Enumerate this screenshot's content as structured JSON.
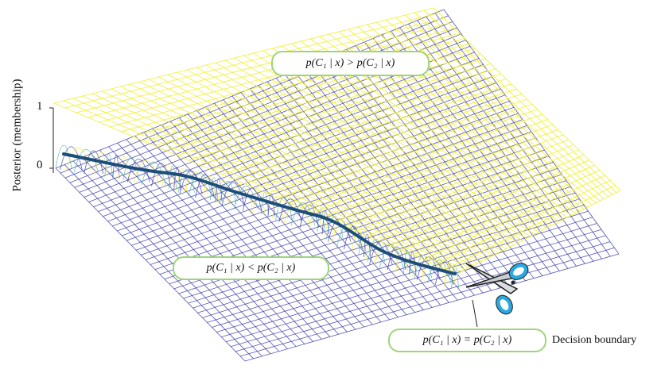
{
  "figure": {
    "y_axis_label": "Posterior (membership)",
    "y_ticks": [
      "1",
      "0"
    ],
    "labels": {
      "region_c1": "p(C₁ | x) > p(C₂ | x)",
      "region_c2": "p(C₁ | x) < p(C₂ | x)",
      "boundary_eq": "p(C₁ | x) = p(C₂ | x)",
      "boundary_name": "Decision boundary"
    },
    "colors": {
      "upper_surface": "#f2ef2c",
      "lower_surface": "#3a3aa8",
      "mid_surface": "#48b6b0",
      "boundary_line": "#1d4e7a",
      "pill_border": "#9fd57a",
      "scissors_handle": "#29a9e0"
    },
    "icons": [
      "scissors-icon"
    ]
  }
}
